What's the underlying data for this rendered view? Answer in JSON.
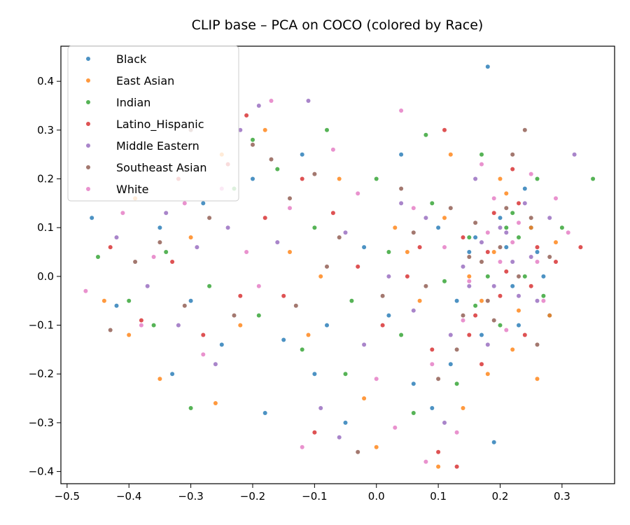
{
  "chart_data": {
    "type": "scatter",
    "title": "CLIP base – PCA on COCO (colored by Race)",
    "xlabel": "",
    "ylabel": "",
    "xlim": [
      -0.51,
      0.385
    ],
    "ylim": [
      -0.425,
      0.472
    ],
    "xticks": [
      -0.5,
      -0.4,
      -0.3,
      -0.2,
      -0.1,
      0.0,
      0.1,
      0.2,
      0.3
    ],
    "xtick_labels": [
      "−0.5",
      "−0.4",
      "−0.3",
      "−0.2",
      "−0.1",
      "0.0",
      "0.1",
      "0.2",
      "0.3"
    ],
    "yticks": [
      -0.4,
      -0.3,
      -0.2,
      -0.1,
      0.0,
      0.1,
      0.2,
      0.3,
      0.4
    ],
    "ytick_labels": [
      "−0.4",
      "−0.3",
      "−0.2",
      "−0.1",
      "0.0",
      "0.1",
      "0.2",
      "0.3",
      "0.4"
    ],
    "grid": false,
    "legend_position": "top-left",
    "series": [
      {
        "name": "Black",
        "color": "#1f77b4",
        "points": [
          [
            -0.46,
            0.12
          ],
          [
            -0.42,
            -0.06
          ],
          [
            -0.35,
            0.1
          ],
          [
            -0.3,
            -0.05
          ],
          [
            -0.25,
            -0.14
          ],
          [
            -0.2,
            0.2
          ],
          [
            -0.18,
            -0.28
          ],
          [
            -0.15,
            -0.13
          ],
          [
            -0.12,
            0.25
          ],
          [
            -0.1,
            -0.2
          ],
          [
            -0.05,
            -0.3
          ],
          [
            -0.02,
            0.06
          ],
          [
            0.02,
            -0.08
          ],
          [
            0.06,
            -0.22
          ],
          [
            0.1,
            0.1
          ],
          [
            0.13,
            -0.05
          ],
          [
            0.15,
            0.05
          ],
          [
            0.17,
            -0.12
          ],
          [
            0.18,
            0.43
          ],
          [
            0.2,
            0.12
          ],
          [
            0.22,
            -0.02
          ],
          [
            0.24,
            0.18
          ],
          [
            0.26,
            0.05
          ],
          [
            0.28,
            -0.08
          ],
          [
            0.19,
            -0.34
          ],
          [
            -0.28,
            0.15
          ],
          [
            -0.33,
            -0.2
          ],
          [
            0.16,
            0.08
          ],
          [
            0.21,
            0.06
          ],
          [
            0.23,
            -0.1
          ],
          [
            0.12,
            -0.18
          ],
          [
            0.04,
            0.25
          ],
          [
            -0.08,
            -0.1
          ],
          [
            0.09,
            -0.27
          ],
          [
            0.25,
            0.1
          ],
          [
            0.27,
            0.0
          ]
        ]
      },
      {
        "name": "East Asian",
        "color": "#ff7f0e",
        "points": [
          [
            -0.44,
            -0.05
          ],
          [
            -0.39,
            0.16
          ],
          [
            -0.35,
            -0.21
          ],
          [
            -0.3,
            0.08
          ],
          [
            -0.25,
            0.25
          ],
          [
            -0.22,
            -0.1
          ],
          [
            -0.18,
            0.3
          ],
          [
            -0.14,
            0.05
          ],
          [
            -0.11,
            -0.12
          ],
          [
            -0.06,
            0.2
          ],
          [
            -0.02,
            -0.25
          ],
          [
            0.0,
            -0.35
          ],
          [
            0.03,
            0.1
          ],
          [
            0.07,
            -0.05
          ],
          [
            0.1,
            -0.39
          ],
          [
            0.12,
            0.25
          ],
          [
            0.15,
            0.0
          ],
          [
            0.18,
            -0.2
          ],
          [
            0.2,
            0.2
          ],
          [
            0.23,
            -0.07
          ],
          [
            0.25,
            0.1
          ],
          [
            0.28,
            -0.08
          ],
          [
            0.26,
            -0.21
          ],
          [
            0.14,
            -0.27
          ],
          [
            -0.26,
            -0.26
          ],
          [
            0.19,
            0.05
          ],
          [
            0.22,
            -0.15
          ],
          [
            -0.09,
            0.0
          ],
          [
            0.05,
            0.05
          ],
          [
            0.17,
            -0.05
          ],
          [
            0.21,
            0.17
          ],
          [
            0.29,
            0.07
          ],
          [
            -0.4,
            -0.12
          ],
          [
            0.11,
            0.12
          ]
        ]
      },
      {
        "name": "Indian",
        "color": "#2ca02c",
        "points": [
          [
            -0.45,
            0.04
          ],
          [
            -0.4,
            -0.05
          ],
          [
            -0.34,
            0.05
          ],
          [
            -0.3,
            -0.27
          ],
          [
            -0.27,
            -0.02
          ],
          [
            -0.23,
            0.18
          ],
          [
            -0.19,
            -0.08
          ],
          [
            -0.16,
            0.22
          ],
          [
            -0.12,
            -0.15
          ],
          [
            -0.08,
            0.3
          ],
          [
            -0.04,
            -0.05
          ],
          [
            0.0,
            0.2
          ],
          [
            0.04,
            -0.12
          ],
          [
            0.08,
            0.29
          ],
          [
            0.11,
            -0.01
          ],
          [
            0.13,
            -0.22
          ],
          [
            0.15,
            0.08
          ],
          [
            0.17,
            0.25
          ],
          [
            0.2,
            -0.1
          ],
          [
            0.22,
            0.13
          ],
          [
            0.24,
            0.0
          ],
          [
            0.26,
            0.2
          ],
          [
            0.35,
            0.2
          ],
          [
            0.3,
            0.1
          ],
          [
            -0.2,
            0.28
          ],
          [
            -0.05,
            -0.2
          ],
          [
            0.06,
            -0.28
          ],
          [
            0.18,
            0.0
          ],
          [
            0.21,
            0.1
          ],
          [
            0.16,
            -0.06
          ],
          [
            0.23,
            0.08
          ],
          [
            -0.1,
            0.1
          ],
          [
            0.02,
            0.05
          ],
          [
            0.27,
            -0.04
          ],
          [
            -0.36,
            -0.1
          ],
          [
            0.09,
            0.15
          ]
        ]
      },
      {
        "name": "Latino_Hispanic",
        "color": "#d62728",
        "points": [
          [
            -0.43,
            0.06
          ],
          [
            -0.38,
            -0.09
          ],
          [
            -0.33,
            0.03
          ],
          [
            -0.28,
            -0.12
          ],
          [
            -0.24,
            0.23
          ],
          [
            -0.21,
            0.33
          ],
          [
            -0.18,
            0.12
          ],
          [
            -0.15,
            -0.04
          ],
          [
            -0.12,
            0.2
          ],
          [
            -0.1,
            -0.32
          ],
          [
            -0.07,
            0.13
          ],
          [
            -0.03,
            0.02
          ],
          [
            0.01,
            -0.1
          ],
          [
            0.05,
            0.0
          ],
          [
            0.09,
            -0.15
          ],
          [
            0.1,
            -0.36
          ],
          [
            0.13,
            -0.39
          ],
          [
            0.14,
            0.08
          ],
          [
            0.16,
            -0.08
          ],
          [
            0.18,
            0.05
          ],
          [
            0.2,
            -0.04
          ],
          [
            0.22,
            0.22
          ],
          [
            0.24,
            -0.12
          ],
          [
            0.26,
            0.06
          ],
          [
            0.33,
            0.06
          ],
          [
            0.29,
            0.03
          ],
          [
            -0.32,
            0.2
          ],
          [
            0.11,
            0.3
          ],
          [
            0.19,
            0.13
          ],
          [
            0.21,
            0.01
          ],
          [
            0.15,
            -0.12
          ],
          [
            0.23,
            0.15
          ],
          [
            0.07,
            0.06
          ],
          [
            -0.22,
            -0.04
          ],
          [
            0.17,
            -0.18
          ],
          [
            0.25,
            -0.02
          ]
        ]
      },
      {
        "name": "Middle Eastern",
        "color": "#9467bd",
        "points": [
          [
            -0.42,
            0.08
          ],
          [
            -0.37,
            -0.02
          ],
          [
            -0.32,
            -0.1
          ],
          [
            -0.29,
            0.06
          ],
          [
            -0.26,
            -0.18
          ],
          [
            -0.22,
            0.3
          ],
          [
            -0.19,
            0.35
          ],
          [
            -0.16,
            0.07
          ],
          [
            -0.11,
            0.36
          ],
          [
            -0.09,
            -0.27
          ],
          [
            -0.05,
            0.09
          ],
          [
            -0.02,
            -0.14
          ],
          [
            0.02,
            0.0
          ],
          [
            0.06,
            -0.07
          ],
          [
            0.08,
            0.12
          ],
          [
            0.11,
            -0.3
          ],
          [
            0.14,
            0.02
          ],
          [
            0.16,
            0.2
          ],
          [
            0.18,
            -0.14
          ],
          [
            0.2,
            0.1
          ],
          [
            0.22,
            0.03
          ],
          [
            0.24,
            0.15
          ],
          [
            0.26,
            -0.05
          ],
          [
            0.32,
            0.25
          ],
          [
            0.28,
            0.12
          ],
          [
            -0.34,
            0.13
          ],
          [
            0.19,
            -0.02
          ],
          [
            0.21,
            0.09
          ],
          [
            0.17,
            0.07
          ],
          [
            0.23,
            -0.04
          ],
          [
            0.12,
            -0.12
          ],
          [
            -0.06,
            -0.33
          ],
          [
            0.04,
            0.15
          ],
          [
            0.25,
            0.04
          ],
          [
            -0.24,
            0.1
          ],
          [
            0.15,
            -0.02
          ]
        ]
      },
      {
        "name": "Southeast Asian",
        "color": "#8c564b",
        "points": [
          [
            -0.43,
            -0.11
          ],
          [
            -0.39,
            0.03
          ],
          [
            -0.35,
            0.07
          ],
          [
            -0.31,
            -0.06
          ],
          [
            -0.27,
            0.12
          ],
          [
            -0.23,
            -0.08
          ],
          [
            -0.2,
            0.27
          ],
          [
            -0.17,
            0.24
          ],
          [
            -0.13,
            -0.06
          ],
          [
            -0.1,
            0.21
          ],
          [
            -0.06,
            0.08
          ],
          [
            -0.03,
            -0.36
          ],
          [
            0.01,
            -0.04
          ],
          [
            0.04,
            0.18
          ],
          [
            0.08,
            -0.02
          ],
          [
            0.1,
            -0.21
          ],
          [
            0.12,
            0.14
          ],
          [
            0.14,
            -0.08
          ],
          [
            0.16,
            0.11
          ],
          [
            0.18,
            -0.05
          ],
          [
            0.2,
            0.06
          ],
          [
            0.22,
            0.25
          ],
          [
            0.24,
            0.3
          ],
          [
            0.26,
            -0.14
          ],
          [
            0.28,
            0.04
          ],
          [
            -0.3,
            0.3
          ],
          [
            0.17,
            0.03
          ],
          [
            0.19,
            -0.09
          ],
          [
            0.21,
            0.14
          ],
          [
            0.23,
            0.0
          ],
          [
            0.15,
            0.04
          ],
          [
            -0.08,
            0.02
          ],
          [
            0.06,
            0.09
          ],
          [
            0.13,
            -0.15
          ],
          [
            0.25,
            0.12
          ],
          [
            -0.14,
            0.16
          ]
        ]
      },
      {
        "name": "White",
        "color": "#e377c2",
        "points": [
          [
            -0.47,
            -0.03
          ],
          [
            -0.41,
            0.13
          ],
          [
            -0.36,
            0.04
          ],
          [
            -0.31,
            0.15
          ],
          [
            -0.28,
            -0.16
          ],
          [
            -0.25,
            0.18
          ],
          [
            -0.21,
            0.05
          ],
          [
            -0.17,
            0.36
          ],
          [
            -0.14,
            0.14
          ],
          [
            -0.12,
            -0.35
          ],
          [
            -0.07,
            0.26
          ],
          [
            -0.03,
            0.17
          ],
          [
            0.0,
            -0.21
          ],
          [
            0.03,
            -0.31
          ],
          [
            0.06,
            0.14
          ],
          [
            0.09,
            -0.18
          ],
          [
            0.11,
            0.06
          ],
          [
            0.13,
            -0.32
          ],
          [
            0.15,
            -0.01
          ],
          [
            0.17,
            0.23
          ],
          [
            0.19,
            0.16
          ],
          [
            0.21,
            -0.11
          ],
          [
            0.23,
            0.11
          ],
          [
            0.25,
            0.21
          ],
          [
            0.27,
            -0.05
          ],
          [
            0.29,
            0.16
          ],
          [
            0.31,
            0.09
          ],
          [
            0.08,
            -0.38
          ],
          [
            -0.38,
            -0.1
          ],
          [
            0.2,
            0.03
          ],
          [
            0.22,
            0.07
          ],
          [
            0.18,
            0.09
          ],
          [
            0.14,
            -0.09
          ],
          [
            -0.19,
            -0.02
          ],
          [
            0.04,
            0.34
          ],
          [
            0.26,
            0.03
          ]
        ]
      }
    ]
  }
}
